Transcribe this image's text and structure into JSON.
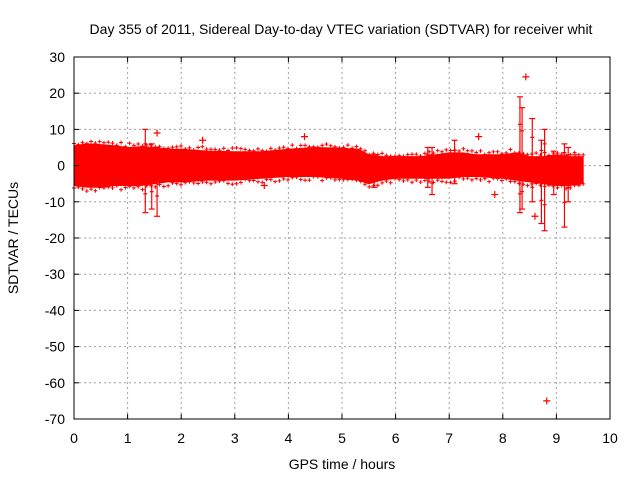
{
  "chart_data": {
    "type": "scatter",
    "title": "Day 355 of 2011, Sidereal Day-to-day VTEC variation (SDTVAR) for receiver whit",
    "xlabel": "GPS time / hours",
    "ylabel": "SDTVAR / TECUs",
    "xlim": [
      0,
      10
    ],
    "ylim": [
      -70,
      30
    ],
    "xticks": [
      0,
      1,
      2,
      3,
      4,
      5,
      6,
      7,
      8,
      9,
      10
    ],
    "yticks": [
      -70,
      -60,
      -50,
      -40,
      -30,
      -20,
      -10,
      0,
      10,
      20,
      30
    ],
    "grid": true,
    "marker": "+",
    "color": "#ff0000",
    "band": {
      "x": [
        0.0,
        0.25,
        0.5,
        0.75,
        1.0,
        1.25,
        1.5,
        1.75,
        2.0,
        2.5,
        3.0,
        3.5,
        4.0,
        4.5,
        5.0,
        5.3,
        5.5,
        5.75,
        6.0,
        6.5,
        7.0,
        7.25,
        7.5,
        8.0,
        8.25,
        8.5,
        8.75,
        9.0,
        9.25,
        9.5
      ],
      "upper": [
        5.5,
        6.0,
        5.8,
        5.5,
        5.0,
        5.2,
        5.0,
        4.5,
        4.5,
        4.0,
        3.8,
        3.8,
        4.5,
        5.0,
        4.8,
        4.5,
        3.0,
        2.5,
        2.5,
        2.5,
        3.5,
        3.5,
        3.0,
        3.0,
        3.5,
        2.5,
        2.5,
        3.0,
        2.5,
        2.5
      ],
      "lower": [
        -5.5,
        -6.0,
        -6.0,
        -5.5,
        -5.5,
        -5.5,
        -5.0,
        -4.5,
        -4.5,
        -4.0,
        -4.0,
        -3.5,
        -3.0,
        -3.0,
        -3.5,
        -4.0,
        -5.0,
        -4.0,
        -3.5,
        -3.5,
        -3.5,
        -3.0,
        -3.0,
        -3.5,
        -4.0,
        -4.5,
        -5.0,
        -5.5,
        -5.5,
        -5.0
      ]
    },
    "spikes": [
      {
        "x": 1.33,
        "low": -13,
        "high": 10
      },
      {
        "x": 1.45,
        "low": -12,
        "high": 6
      },
      {
        "x": 1.55,
        "low": -14,
        "high": 5
      },
      {
        "x": 5.6,
        "low": -6,
        "high": 3
      },
      {
        "x": 6.6,
        "low": -6,
        "high": 5
      },
      {
        "x": 6.68,
        "low": -8,
        "high": 5
      },
      {
        "x": 7.1,
        "low": -5,
        "high": 7
      },
      {
        "x": 8.32,
        "low": -13,
        "high": 19
      },
      {
        "x": 8.36,
        "low": -12,
        "high": 16
      },
      {
        "x": 8.55,
        "low": -10,
        "high": 13
      },
      {
        "x": 8.72,
        "low": -16,
        "high": 7
      },
      {
        "x": 8.78,
        "low": -18,
        "high": 10
      },
      {
        "x": 8.95,
        "low": -8,
        "high": 4
      },
      {
        "x": 9.15,
        "low": -17,
        "high": 6
      },
      {
        "x": 9.22,
        "low": -10,
        "high": 5
      },
      {
        "x": 9.35,
        "low": -5,
        "high": 3
      }
    ],
    "outliers": [
      {
        "x": 1.55,
        "y": 9.0
      },
      {
        "x": 2.4,
        "y": 7.0
      },
      {
        "x": 3.55,
        "y": -5.5
      },
      {
        "x": 4.3,
        "y": 8.0
      },
      {
        "x": 7.55,
        "y": 8.0
      },
      {
        "x": 7.85,
        "y": -8.0
      },
      {
        "x": 8.43,
        "y": 24.5
      },
      {
        "x": 8.6,
        "y": -14.0
      },
      {
        "x": 8.82,
        "y": -65.0
      }
    ]
  }
}
